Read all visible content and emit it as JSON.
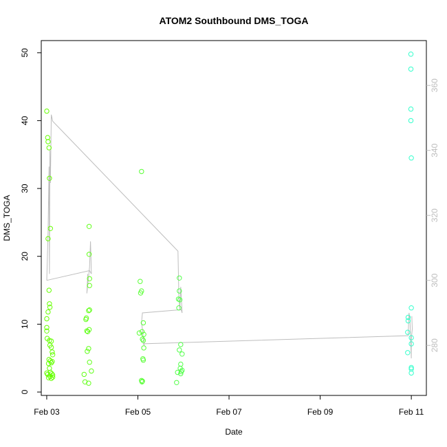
{
  "chart_data": {
    "type": "scatter",
    "title": "ATOM2 Southbound DMS_TOGA",
    "xlabel": "Date",
    "ylabel": "DMS_TOGA",
    "x_ticks": [
      "Feb 03",
      "Feb 05",
      "Feb 07",
      "Feb 09",
      "Feb 11"
    ],
    "xlim_days": [
      2.88,
      11.33
    ],
    "ylim": [
      -0.5,
      51.8
    ],
    "y_ticks": [
      0,
      10,
      20,
      30,
      40,
      50
    ],
    "y2_ticks": [
      280,
      300,
      320,
      340,
      360
    ],
    "y2lim": [
      264.6,
      373.8
    ],
    "grid": false,
    "legend": "none",
    "colors": {
      "point_start": "#66ff00",
      "point_end": "#33ffcc",
      "line": "#bdbdbd",
      "right_axis": "#bdbdbd"
    },
    "points": [
      {
        "x": 3.0,
        "y": 41.4
      },
      {
        "x": 3.02,
        "y": 37.5
      },
      {
        "x": 3.03,
        "y": 36.9
      },
      {
        "x": 3.05,
        "y": 36.0
      },
      {
        "x": 3.06,
        "y": 31.5
      },
      {
        "x": 3.08,
        "y": 24.1
      },
      {
        "x": 3.03,
        "y": 22.6
      },
      {
        "x": 3.05,
        "y": 15.0
      },
      {
        "x": 3.06,
        "y": 13.0
      },
      {
        "x": 3.07,
        "y": 12.5
      },
      {
        "x": 3.03,
        "y": 11.8
      },
      {
        "x": 3.0,
        "y": 10.8
      },
      {
        "x": 3.0,
        "y": 9.5
      },
      {
        "x": 3.0,
        "y": 9.0
      },
      {
        "x": 3.01,
        "y": 7.9
      },
      {
        "x": 3.06,
        "y": 7.6
      },
      {
        "x": 3.1,
        "y": 7.5
      },
      {
        "x": 3.07,
        "y": 6.9
      },
      {
        "x": 3.1,
        "y": 6.6
      },
      {
        "x": 3.12,
        "y": 5.9
      },
      {
        "x": 3.13,
        "y": 5.5
      },
      {
        "x": 3.05,
        "y": 4.8
      },
      {
        "x": 3.08,
        "y": 4.6
      },
      {
        "x": 3.12,
        "y": 4.5
      },
      {
        "x": 3.1,
        "y": 4.3
      },
      {
        "x": 3.04,
        "y": 4.2
      },
      {
        "x": 3.06,
        "y": 3.5
      },
      {
        "x": 3.0,
        "y": 2.8
      },
      {
        "x": 3.02,
        "y": 2.6
      },
      {
        "x": 3.08,
        "y": 2.9
      },
      {
        "x": 3.11,
        "y": 2.7
      },
      {
        "x": 3.13,
        "y": 2.5
      },
      {
        "x": 3.07,
        "y": 2.3
      },
      {
        "x": 3.04,
        "y": 2.1
      },
      {
        "x": 3.1,
        "y": 2.0
      },
      {
        "x": 3.13,
        "y": 2.2
      },
      {
        "x": 3.93,
        "y": 24.4
      },
      {
        "x": 3.93,
        "y": 20.3
      },
      {
        "x": 3.94,
        "y": 16.7
      },
      {
        "x": 3.94,
        "y": 15.7
      },
      {
        "x": 3.94,
        "y": 12.1
      },
      {
        "x": 3.92,
        "y": 12.0
      },
      {
        "x": 3.87,
        "y": 10.9
      },
      {
        "x": 3.86,
        "y": 10.7
      },
      {
        "x": 3.93,
        "y": 9.2
      },
      {
        "x": 3.88,
        "y": 9.0
      },
      {
        "x": 3.9,
        "y": 8.9
      },
      {
        "x": 3.92,
        "y": 6.4
      },
      {
        "x": 3.89,
        "y": 6.0
      },
      {
        "x": 3.94,
        "y": 4.4
      },
      {
        "x": 3.98,
        "y": 3.1
      },
      {
        "x": 3.82,
        "y": 2.6
      },
      {
        "x": 3.84,
        "y": 1.5
      },
      {
        "x": 3.92,
        "y": 1.3
      },
      {
        "x": 5.08,
        "y": 32.5
      },
      {
        "x": 5.05,
        "y": 16.3
      },
      {
        "x": 5.08,
        "y": 14.9
      },
      {
        "x": 5.06,
        "y": 14.6
      },
      {
        "x": 5.12,
        "y": 10.2
      },
      {
        "x": 5.03,
        "y": 8.7
      },
      {
        "x": 5.09,
        "y": 8.9
      },
      {
        "x": 5.13,
        "y": 8.5
      },
      {
        "x": 5.1,
        "y": 7.8
      },
      {
        "x": 5.12,
        "y": 7.6
      },
      {
        "x": 5.13,
        "y": 6.5
      },
      {
        "x": 5.11,
        "y": 4.9
      },
      {
        "x": 5.12,
        "y": 4.7
      },
      {
        "x": 5.08,
        "y": 1.7
      },
      {
        "x": 5.1,
        "y": 1.6
      },
      {
        "x": 5.09,
        "y": 1.5
      },
      {
        "x": 5.91,
        "y": 16.8
      },
      {
        "x": 5.91,
        "y": 14.9
      },
      {
        "x": 5.89,
        "y": 13.7
      },
      {
        "x": 5.92,
        "y": 13.6
      },
      {
        "x": 5.9,
        "y": 12.4
      },
      {
        "x": 5.94,
        "y": 7.0
      },
      {
        "x": 5.91,
        "y": 6.2
      },
      {
        "x": 5.97,
        "y": 5.6
      },
      {
        "x": 5.94,
        "y": 4.1
      },
      {
        "x": 5.93,
        "y": 3.5
      },
      {
        "x": 5.97,
        "y": 3.2
      },
      {
        "x": 5.95,
        "y": 3.0
      },
      {
        "x": 5.87,
        "y": 2.9
      },
      {
        "x": 5.94,
        "y": 2.7
      },
      {
        "x": 5.85,
        "y": 1.4
      },
      {
        "x": 10.99,
        "y": 49.8
      },
      {
        "x": 10.99,
        "y": 47.6
      },
      {
        "x": 10.99,
        "y": 41.7
      },
      {
        "x": 10.99,
        "y": 40.0
      },
      {
        "x": 11.0,
        "y": 34.5
      },
      {
        "x": 11.0,
        "y": 12.4
      },
      {
        "x": 10.93,
        "y": 11.0
      },
      {
        "x": 10.93,
        "y": 10.5
      },
      {
        "x": 10.92,
        "y": 8.8
      },
      {
        "x": 11.0,
        "y": 8.0
      },
      {
        "x": 11.0,
        "y": 7.1
      },
      {
        "x": 10.92,
        "y": 5.8
      },
      {
        "x": 11.0,
        "y": 3.6
      },
      {
        "x": 11.0,
        "y": 3.4
      },
      {
        "x": 11.0,
        "y": 2.8
      }
    ],
    "line": [
      {
        "x": 3.0,
        "y2": 300
      },
      {
        "x": 3.03,
        "y2": 315
      },
      {
        "x": 3.05,
        "y2": 335
      },
      {
        "x": 3.06,
        "y2": 302
      },
      {
        "x": 3.07,
        "y2": 340
      },
      {
        "x": 3.08,
        "y2": 330
      },
      {
        "x": 3.1,
        "y2": 351
      },
      {
        "x": 3.13,
        "y2": 349
      },
      {
        "x": 5.88,
        "y2": 309
      },
      {
        "x": 5.9,
        "y2": 295
      },
      {
        "x": 5.92,
        "y2": 291
      },
      {
        "x": 5.94,
        "y2": 298
      },
      {
        "x": 5.96,
        "y2": 293
      },
      {
        "x": 5.97,
        "y2": 290
      },
      {
        "x": 5.95,
        "y2": 291
      },
      {
        "x": 5.1,
        "y2": 290
      },
      {
        "x": 5.08,
        "y2": 287
      },
      {
        "x": 5.1,
        "y2": 285
      },
      {
        "x": 5.12,
        "y2": 282
      },
      {
        "x": 5.14,
        "y2": 280
      },
      {
        "x": 5.12,
        "y2": 280.5
      },
      {
        "x": 10.93,
        "y2": 283
      },
      {
        "x": 10.95,
        "y2": 290
      },
      {
        "x": 10.97,
        "y2": 288
      },
      {
        "x": 11.0,
        "y2": 276
      },
      {
        "x": 11.0,
        "y2": 282
      },
      {
        "x": 11.02,
        "y2": 285
      },
      {
        "x": 11.01,
        "y2": 289
      }
    ],
    "line_extra": [
      {
        "x": 3.0,
        "y2": 300
      },
      {
        "x": 3.94,
        "y2": 303
      },
      {
        "x": 3.98,
        "y2": 302
      },
      {
        "x": 3.96,
        "y2": 312
      },
      {
        "x": 3.94,
        "y2": 304
      },
      {
        "x": 3.88,
        "y2": 296
      },
      {
        "x": 3.9,
        "y2": 302
      }
    ]
  }
}
